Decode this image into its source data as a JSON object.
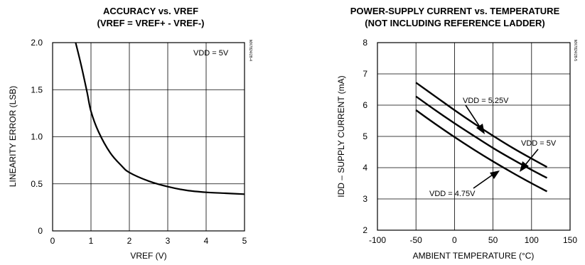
{
  "chart_data": [
    {
      "type": "line",
      "title": "ACCURACY vs. VREF",
      "subtitle": "(VREF = VREF+ - VREF-)",
      "xlabel": "VREF (V)",
      "ylabel": "LINEARITY ERROR (LSB)",
      "xlim": [
        0,
        5
      ],
      "ylim": [
        0,
        2.0
      ],
      "x_ticks": [
        "0",
        "1",
        "2",
        "3",
        "4",
        "5"
      ],
      "y_ticks": [
        "0",
        "0.5",
        "1.0",
        "1.5",
        "2.0"
      ],
      "grid": true,
      "annotation": "VDD = 5V",
      "side_id": "MX7824/28-4",
      "series": [
        {
          "x": [
            0.6,
            0.75,
            0.9,
            1.0,
            1.2,
            1.5,
            1.8,
            2.0,
            2.5,
            3.0,
            3.5,
            4.0,
            4.5,
            5.0
          ],
          "y": [
            2.0,
            1.75,
            1.47,
            1.27,
            1.05,
            0.83,
            0.69,
            0.62,
            0.53,
            0.47,
            0.43,
            0.41,
            0.4,
            0.39
          ]
        }
      ]
    },
    {
      "type": "line",
      "title": "POWER-SUPPLY CURRENT vs. TEMPERATURE",
      "subtitle": "(NOT INCLUDING REFERENCE LADDER)",
      "xlabel": "AMBIENT TEMPERATURE (°C)",
      "ylabel": "IDD – SUPPLY CURRENT (mA)",
      "xlim": [
        -100,
        150
      ],
      "ylim": [
        2,
        8
      ],
      "x_ticks": [
        "-100",
        "-50",
        "0",
        "50",
        "100",
        "150"
      ],
      "y_ticks": [
        "2",
        "3",
        "4",
        "5",
        "6",
        "7",
        "8"
      ],
      "grid": true,
      "side_id": "MX7824/28-5",
      "series": [
        {
          "name": "VDD = 5.25V",
          "x": [
            -50,
            -25,
            0,
            25,
            50,
            75,
            100,
            120
          ],
          "y": [
            6.72,
            6.28,
            5.84,
            5.42,
            5.02,
            4.64,
            4.29,
            4.02
          ]
        },
        {
          "name": "VDD = 5V",
          "x": [
            -50,
            -25,
            0,
            25,
            50,
            75,
            100,
            120
          ],
          "y": [
            6.28,
            5.84,
            5.42,
            5.02,
            4.63,
            4.27,
            3.93,
            3.67
          ]
        },
        {
          "name": "VDD = 4.75V",
          "x": [
            -50,
            -25,
            0,
            25,
            50,
            75,
            100,
            120
          ],
          "y": [
            5.84,
            5.4,
            4.98,
            4.58,
            4.2,
            3.84,
            3.5,
            3.24
          ]
        }
      ]
    }
  ]
}
